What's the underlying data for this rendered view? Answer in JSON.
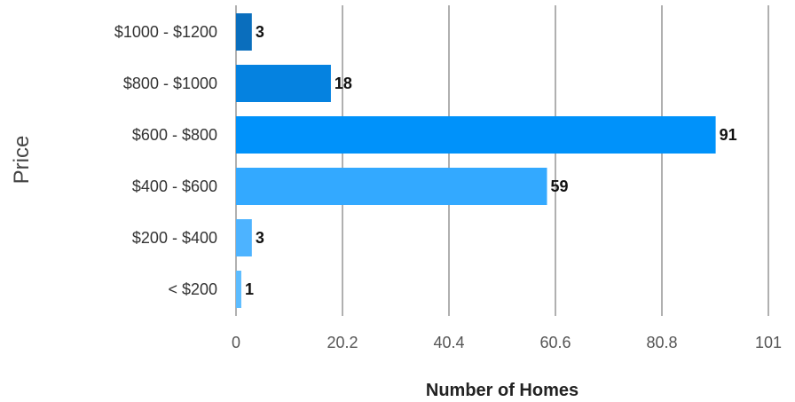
{
  "chart_data": {
    "type": "bar",
    "orientation": "horizontal",
    "categories": [
      "$1000 - $1200",
      "$800 - $1000",
      "$600 - $800",
      "$400 - $600",
      "$200 - $400",
      "< $200"
    ],
    "values": [
      3,
      18,
      91,
      59,
      3,
      1
    ],
    "data_labels": [
      "3",
      "18",
      "91",
      "59",
      "3",
      "1"
    ],
    "colors": [
      "#0a6ebd",
      "#0582e0",
      "#0092fa",
      "#33a9ff",
      "#4db3ff",
      "#5cbcff"
    ],
    "xlabel": "Number of Homes",
    "ylabel": "Price",
    "xlim": [
      0,
      101
    ],
    "x_ticks": [
      "0",
      "20.2",
      "40.4",
      "60.6",
      "80.8",
      "101"
    ],
    "x_tick_values": [
      0,
      20.2,
      40.4,
      60.6,
      80.8,
      101
    ],
    "grid": true,
    "legend": "none"
  }
}
